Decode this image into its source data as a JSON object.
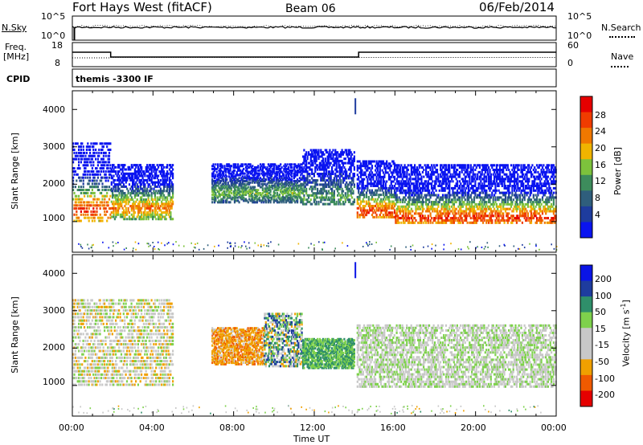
{
  "header": {
    "radar": "Fort Hays West (fitACF)",
    "beam": "Beam 06",
    "date": "06/Feb/2014"
  },
  "top_panel": {
    "left_labels": {
      "nsky": "N.Sky",
      "freq": "Freq.",
      "freq_unit": "[MHz]",
      "cpid": "CPID"
    },
    "right_labels": {
      "nsearch": "N.Search",
      "nave": "Nave"
    },
    "noise_ticks_left": [
      "10^5",
      "10^0"
    ],
    "noise_ticks_right": [
      "10^5",
      "10^0"
    ],
    "freq_ticks": [
      "18",
      "8"
    ],
    "nave_ticks": [
      "60",
      "0"
    ],
    "cpid_text": "themis -3300 IF"
  },
  "colors": {
    "power_scale": [
      "#0a14f0",
      "#1e3c9e",
      "#2f5e7c",
      "#3d8c5c",
      "#7dc23c",
      "#f0b400",
      "#f07800",
      "#f03c00",
      "#e60000"
    ],
    "velocity_scale": [
      "#e60000",
      "#f05a00",
      "#f0a000",
      "#c8c8c8",
      "#c8c8c8",
      "#7ed14c",
      "#2f8f6a",
      "#1e3c9e",
      "#0a14e6"
    ]
  },
  "chart_data": [
    {
      "type": "line",
      "panel": "noise",
      "x": [
        "00:00",
        "04:00",
        "08:00",
        "12:00",
        "16:00",
        "20:00",
        "00:00"
      ],
      "series": [
        {
          "name": "N.Sky",
          "values": [
            3.9,
            4.0,
            3.9,
            3.9,
            3.95,
            3.9,
            3.95
          ]
        },
        {
          "name": "N.Search",
          "values": [
            3.8,
            3.9,
            3.8,
            3.8,
            3.85,
            3.8,
            3.85
          ]
        }
      ]
    },
    {
      "type": "line",
      "panel": "freq_nave",
      "segments_freq": [
        [
          0.0,
          1.9,
          14
        ],
        [
          1.9,
          14.2,
          12
        ],
        [
          14.2,
          24.0,
          14
        ]
      ],
      "segments_nave": [
        [
          0.0,
          1.9,
          22
        ],
        [
          1.9,
          14.2,
          23
        ],
        [
          14.2,
          24.0,
          23
        ]
      ],
      "freq_ylim": [
        8,
        18
      ],
      "nave_ylim": [
        0,
        60
      ]
    },
    {
      "type": "heatmap",
      "panel": "power",
      "ylabel": "Slant Range [km]",
      "xlabel": "Time UT",
      "yticks": [
        1000,
        2000,
        3000,
        4000
      ],
      "xticks": [
        "00:00",
        "04:00",
        "08:00",
        "12:00",
        "16:00",
        "20:00",
        "00:00"
      ],
      "ylim": [
        180,
        4500
      ],
      "xlim": [
        0,
        24
      ],
      "colorbar": {
        "label": "Power [dB]",
        "ticks": [
          4,
          8,
          12,
          16,
          20,
          24,
          28
        ]
      },
      "regions": [
        {
          "t0": 0.0,
          "t1": 1.9,
          "r0": 1050,
          "r1": 3200,
          "core": 1350,
          "pmax": 28
        },
        {
          "t0": 1.9,
          "t1": 5.0,
          "r0": 1100,
          "r1": 2600,
          "core": 1400,
          "pmax": 24
        },
        {
          "t0": 6.9,
          "t1": 11.4,
          "r0": 1550,
          "r1": 2600,
          "core": 1800,
          "pmax": 16
        },
        {
          "t0": 11.4,
          "t1": 14.0,
          "r0": 1500,
          "r1": 3000,
          "core": 1700,
          "pmax": 14
        },
        {
          "t0": 14.1,
          "t1": 16.0,
          "r0": 1150,
          "r1": 2700,
          "core": 1300,
          "pmax": 28
        },
        {
          "t0": 16.0,
          "t1": 24.0,
          "r0": 1000,
          "r1": 2600,
          "core": 1150,
          "pmax": 28
        }
      ]
    },
    {
      "type": "heatmap",
      "panel": "velocity",
      "ylabel": "Slant Range [km]",
      "xlabel": "Time UT",
      "yticks": [
        1000,
        2000,
        3000,
        4000
      ],
      "xticks": [
        "00:00",
        "04:00",
        "08:00",
        "12:00",
        "16:00",
        "20:00",
        "00:00"
      ],
      "ylim": [
        180,
        4500
      ],
      "xlim": [
        0,
        24
      ],
      "colorbar": {
        "label": "Velocity [m s^-1]",
        "ticks": [
          200,
          100,
          50,
          15,
          -15,
          -50,
          -100,
          -200
        ]
      },
      "regions": [
        {
          "t0": 0.0,
          "t1": 5.0,
          "r0": 1050,
          "r1": 3400,
          "vmean": -15,
          "vspread": 60
        },
        {
          "t0": 6.9,
          "t1": 9.5,
          "r0": 1600,
          "r1": 2600,
          "vmean": -80,
          "vspread": 40
        },
        {
          "t0": 9.5,
          "t1": 11.4,
          "r0": 1550,
          "r1": 3000,
          "vmean": 40,
          "vspread": 120
        },
        {
          "t0": 11.4,
          "t1": 14.0,
          "r0": 1500,
          "r1": 2300,
          "vmean": 50,
          "vspread": 30
        },
        {
          "t0": 14.1,
          "t1": 24.0,
          "r0": 1000,
          "r1": 2700,
          "vmean": 0,
          "vspread": 50
        }
      ]
    }
  ],
  "axis": {
    "xlabel": "Time UT",
    "ylabel": "Slant Range [km]",
    "xticks": [
      "00:00",
      "04:00",
      "08:00",
      "12:00",
      "16:00",
      "20:00",
      "00:00"
    ],
    "yticks": [
      "1000",
      "2000",
      "3000",
      "4000"
    ],
    "power_label": "Power [dB]",
    "velocity_label": "Velocity [m s",
    "velocity_exp": "-1",
    "velocity_close": "]",
    "power_ticks": [
      "28",
      "24",
      "20",
      "16",
      "12",
      "8",
      "4"
    ],
    "velocity_ticks": [
      "200",
      "100",
      "50",
      "15",
      "-15",
      "-50",
      "-100",
      "-200"
    ]
  }
}
